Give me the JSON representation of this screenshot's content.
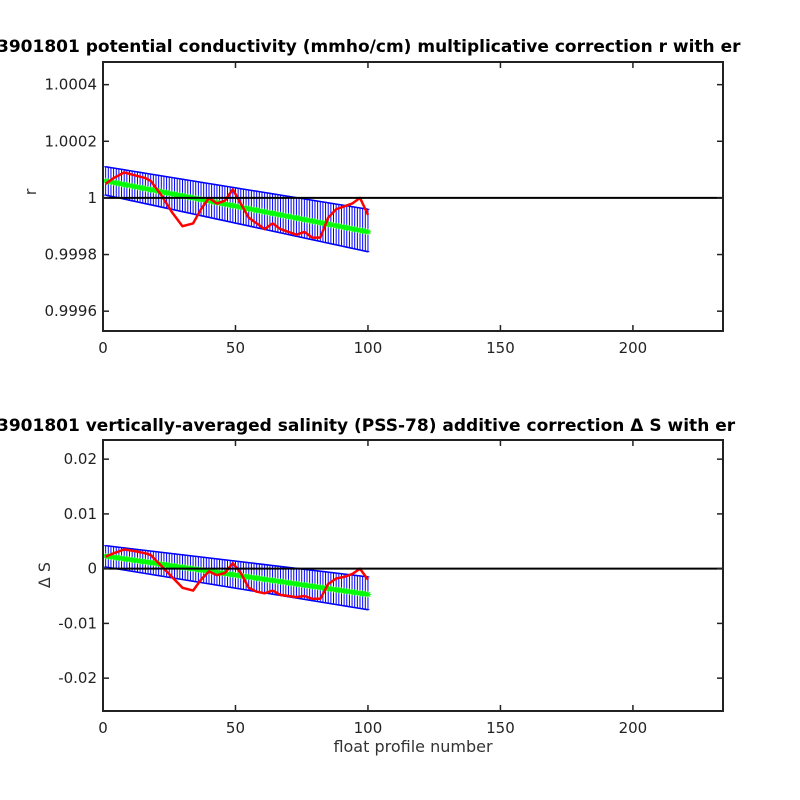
{
  "chart_data": [
    {
      "type": "line",
      "title": "3901801 potential conductivity (mmho/cm) multiplicative correction r with er",
      "xlabel": "",
      "ylabel": "r",
      "xlim": [
        0,
        234
      ],
      "ylim": [
        0.99953,
        1.00048
      ],
      "x_ticks": [
        0,
        50,
        100,
        150,
        200
      ],
      "x_tick_labels": [
        "0",
        "50",
        "100",
        "150",
        "200"
      ],
      "y_ticks": [
        0.9996,
        0.9998,
        1.0,
        1.0002,
        1.0004
      ],
      "y_tick_labels": [
        "0.9996",
        "0.9998",
        "1",
        "1.0002",
        "1.0004"
      ],
      "reference_line": 1.0,
      "grid": false,
      "series": [
        {
          "role": "error_band",
          "color": "#0000ff",
          "x_range": [
            1,
            100
          ],
          "upper": [
            1.00011,
            0.99996
          ],
          "lower": [
            1.00001,
            0.99981
          ]
        },
        {
          "role": "fit",
          "color": "#00ff00",
          "x_range": [
            1,
            100
          ],
          "values": [
            1.00006,
            0.99988
          ]
        },
        {
          "role": "estimate",
          "color": "#ff0000",
          "x": [
            1,
            4,
            8,
            12,
            16,
            18,
            22,
            26,
            30,
            34,
            37,
            40,
            43,
            46,
            49,
            52,
            55,
            58,
            61,
            64,
            67,
            70,
            73,
            76,
            79,
            82,
            85,
            88,
            91,
            94,
            97,
            100
          ],
          "values": [
            1.00005,
            1.00007,
            1.00009,
            1.00008,
            1.00007,
            1.00006,
            1.00001,
            0.99995,
            0.9999,
            0.99991,
            0.99996,
            1.0,
            0.99998,
            0.99999,
            1.00003,
            0.99998,
            0.99993,
            0.99991,
            0.99989,
            0.99991,
            0.99989,
            0.99988,
            0.99987,
            0.99988,
            0.99986,
            0.99986,
            0.99993,
            0.99996,
            0.99997,
            0.99998,
            1.0,
            0.99994
          ]
        }
      ]
    },
    {
      "type": "line",
      "title": "3901801 vertically-averaged salinity (PSS-78) additive correction Δ S with er",
      "xlabel": "float profile number",
      "ylabel": "Δ S",
      "xlim": [
        0,
        234
      ],
      "ylim": [
        -0.026,
        0.0235
      ],
      "x_ticks": [
        0,
        50,
        100,
        150,
        200
      ],
      "x_tick_labels": [
        "0",
        "50",
        "100",
        "150",
        "200"
      ],
      "y_ticks": [
        -0.02,
        -0.01,
        0,
        0.01,
        0.02
      ],
      "y_tick_labels": [
        "-0.02",
        "-0.01",
        "0",
        "0.01",
        "0.02"
      ],
      "reference_line": 0,
      "grid": false,
      "series": [
        {
          "role": "error_band",
          "color": "#0000ff",
          "x_range": [
            1,
            100
          ],
          "upper": [
            0.0042,
            -0.0015
          ],
          "lower": [
            0.0003,
            -0.0075
          ]
        },
        {
          "role": "fit",
          "color": "#00ff00",
          "x_range": [
            1,
            100
          ],
          "values": [
            0.0023,
            -0.0047
          ]
        },
        {
          "role": "estimate",
          "color": "#ff0000",
          "x": [
            1,
            4,
            8,
            12,
            16,
            18,
            22,
            26,
            30,
            34,
            37,
            40,
            43,
            46,
            49,
            52,
            55,
            58,
            61,
            64,
            67,
            70,
            73,
            76,
            79,
            82,
            85,
            88,
            91,
            94,
            97,
            100
          ],
          "values": [
            0.0022,
            0.0028,
            0.0035,
            0.0032,
            0.0028,
            0.0025,
            0.0005,
            -0.0015,
            -0.0035,
            -0.004,
            -0.002,
            -0.0005,
            -0.0012,
            -0.0008,
            0.001,
            -0.0008,
            -0.0035,
            -0.0042,
            -0.0045,
            -0.004,
            -0.0048,
            -0.005,
            -0.0052,
            -0.005,
            -0.0055,
            -0.0055,
            -0.0028,
            -0.0018,
            -0.0015,
            -0.001,
            0.0,
            -0.002
          ]
        }
      ]
    }
  ]
}
